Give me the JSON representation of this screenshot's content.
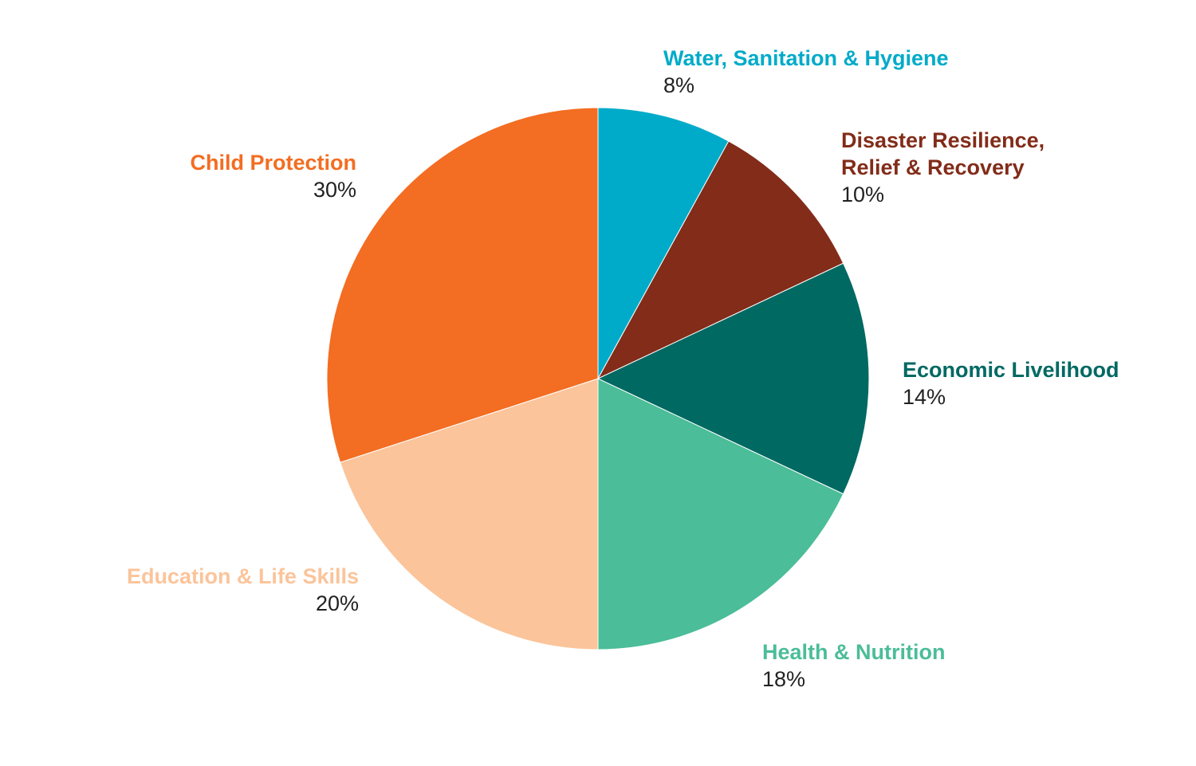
{
  "chart_data": {
    "type": "pie",
    "title": "",
    "start_angle_deg": 0,
    "direction": "clockwise",
    "slices": [
      {
        "name_lines": [
          "Water, Sanitation & Hygiene"
        ],
        "value": 8,
        "value_label": "8%",
        "color": "#00abc9"
      },
      {
        "name_lines": [
          "Disaster Resilience,",
          "Relief & Recovery"
        ],
        "value": 10,
        "value_label": "10%",
        "color": "#822c19"
      },
      {
        "name_lines": [
          "Economic Livelihood"
        ],
        "value": 14,
        "value_label": "14%",
        "color": "#006962"
      },
      {
        "name_lines": [
          "Health & Nutrition"
        ],
        "value": 18,
        "value_label": "18%",
        "color": "#4bbd98"
      },
      {
        "name_lines": [
          "Education & Life Skills"
        ],
        "value": 20,
        "value_label": "20%",
        "color": "#fbc49a"
      },
      {
        "name_lines": [
          "Child Protection"
        ],
        "value": 30,
        "value_label": "30%",
        "color": "#f36d22"
      }
    ]
  }
}
